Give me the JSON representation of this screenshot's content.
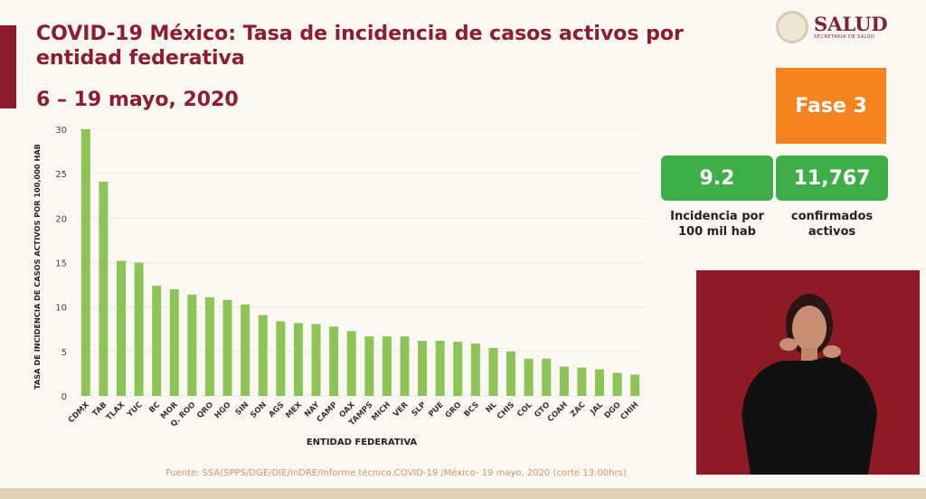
{
  "header": {
    "title": "COVID-19 México: Tasa de incidencia de casos activos por entidad federativa",
    "date": "6 – 19 mayo, 2020"
  },
  "logo": {
    "name": "SALUD",
    "subtitle": "SECRETARÍA DE SALUD"
  },
  "stats": {
    "phase": "Fase 3",
    "incidence": "9.2",
    "incidence_label": "Incidencia por 100 mil hab",
    "confirmed": "11,767",
    "confirmed_label": "confirmados activos"
  },
  "source": "Fuente: SSA(SPPS/DGE/DIE/InDRE/Informe técnico.COVID-19 /México- 19 mayo, 2020 (corte 13:00hrs)",
  "colors": {
    "bar": "#8cc455",
    "accent": "#8c1c2e",
    "phase": "#f5831f",
    "stat": "#3fae49"
  },
  "chart_data": {
    "type": "bar",
    "title": "",
    "xlabel": "ENTIDAD FEDERATIVA",
    "ylabel": "TASA DE INCIDENCIA DE CASOS ACTIVOS  POR 100,000 HAB",
    "ylim": [
      0,
      30
    ],
    "yticks": [
      0,
      5,
      10,
      15,
      20,
      25,
      30
    ],
    "grid": true,
    "categories": [
      "CDMX",
      "TAB",
      "TLAX",
      "YUC",
      "BC",
      "MOR",
      "Q. ROO",
      "QRO",
      "HGO",
      "SIN",
      "SON",
      "AGS",
      "MEX",
      "NAY",
      "CAMP",
      "OAX",
      "TAMPS",
      "MICH",
      "VER",
      "SLP",
      "PUE",
      "GRO",
      "BCS",
      "NL",
      "CHIS",
      "COL",
      "GTO",
      "COAH",
      "ZAC",
      "JAL",
      "DGO",
      "CHIH"
    ],
    "values": [
      30,
      24.1,
      15.2,
      15.0,
      12.4,
      12.0,
      11.4,
      11.1,
      10.8,
      10.3,
      9.1,
      8.4,
      8.2,
      8.1,
      7.8,
      7.3,
      6.7,
      6.7,
      6.7,
      6.2,
      6.2,
      6.1,
      5.9,
      5.4,
      5.0,
      4.2,
      4.2,
      3.3,
      3.2,
      3.0,
      2.6,
      2.4
    ]
  }
}
